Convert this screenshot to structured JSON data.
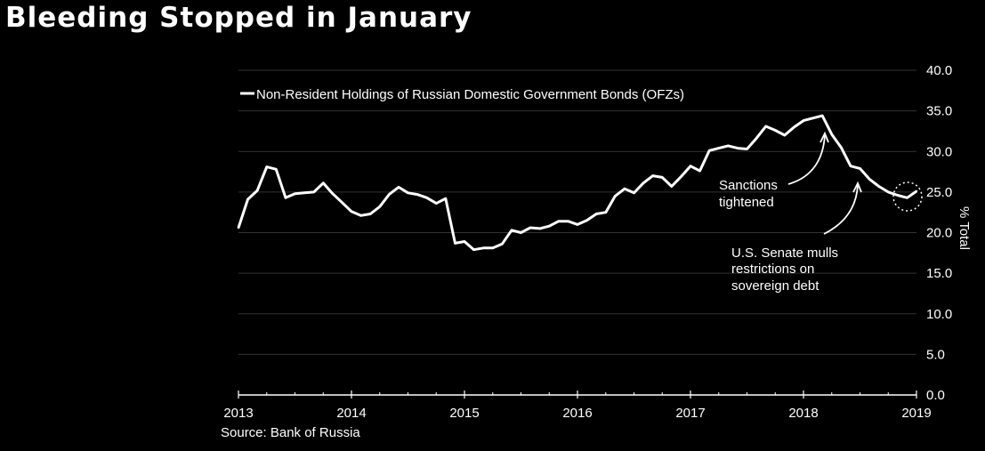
{
  "title": "Bleeding Stopped in January",
  "source": "Source: Bank of Russia",
  "chart_data": {
    "type": "line",
    "title": "Bleeding Stopped in January",
    "ylabel": "% Total",
    "xlabel": "",
    "ylim": [
      0,
      40
    ],
    "yticks": [
      "0.0",
      "5.0",
      "10.0",
      "15.0",
      "20.0",
      "25.0",
      "30.0",
      "35.0",
      "40.0"
    ],
    "xticks": [
      "2013",
      "2014",
      "2015",
      "2016",
      "2017",
      "2018",
      "2019"
    ],
    "grid": true,
    "legend_position": "top-left",
    "line_color": "#ffffff",
    "series": [
      {
        "name": "Non-Resident Holdings of Russian Domestic Government Bonds (OFZs)",
        "x": [
          2013.0,
          2013.083,
          2013.167,
          2013.25,
          2013.333,
          2013.417,
          2013.5,
          2013.583,
          2013.667,
          2013.75,
          2013.833,
          2013.917,
          2014.0,
          2014.083,
          2014.167,
          2014.25,
          2014.333,
          2014.417,
          2014.5,
          2014.583,
          2014.667,
          2014.75,
          2014.833,
          2014.917,
          2015.0,
          2015.083,
          2015.167,
          2015.25,
          2015.333,
          2015.417,
          2015.5,
          2015.583,
          2015.667,
          2015.75,
          2015.833,
          2015.917,
          2016.0,
          2016.083,
          2016.167,
          2016.25,
          2016.333,
          2016.417,
          2016.5,
          2016.583,
          2016.667,
          2016.75,
          2016.833,
          2016.917,
          2017.0,
          2017.083,
          2017.167,
          2017.25,
          2017.333,
          2017.417,
          2017.5,
          2017.583,
          2017.667,
          2017.75,
          2017.833,
          2017.917,
          2018.0,
          2018.083,
          2018.167,
          2018.25,
          2018.333,
          2018.417,
          2018.5,
          2018.583,
          2018.667,
          2018.75,
          2018.833,
          2018.917,
          2019.0
        ],
        "y": [
          20.6,
          24.1,
          25.2,
          28.1,
          27.8,
          24.3,
          24.8,
          24.9,
          25.0,
          26.1,
          24.8,
          23.7,
          22.6,
          22.1,
          22.3,
          23.2,
          24.7,
          25.6,
          24.9,
          24.7,
          24.3,
          23.6,
          24.2,
          18.7,
          18.9,
          17.9,
          18.1,
          18.1,
          18.6,
          20.3,
          20.0,
          20.6,
          20.5,
          20.8,
          21.4,
          21.4,
          21.0,
          21.5,
          22.3,
          22.5,
          24.5,
          25.4,
          24.9,
          26.1,
          27.0,
          26.8,
          25.7,
          26.9,
          28.2,
          27.6,
          30.1,
          30.4,
          30.7,
          30.4,
          30.3,
          31.6,
          33.1,
          32.6,
          32.0,
          33.0,
          33.8,
          34.1,
          34.4,
          32.1,
          30.5,
          28.2,
          27.9,
          26.6,
          25.7,
          25.0,
          24.6,
          24.3,
          25.1
        ]
      }
    ],
    "annotations": [
      {
        "lines": [
          "Sanctions",
          "tightened"
        ],
        "x": 2018.2,
        "y": 33.7
      },
      {
        "lines": [
          "U.S. Senate mulls",
          "restrictions on",
          "sovereign debt"
        ],
        "x": 2018.5,
        "y": 28.0
      },
      {
        "marker": "dotted-circle",
        "x": 2018.95,
        "y": 24.8
      }
    ]
  }
}
